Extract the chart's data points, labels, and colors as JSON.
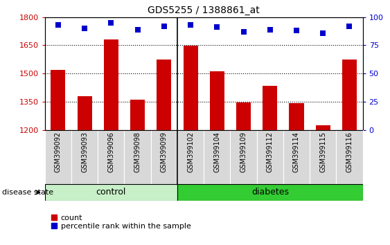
{
  "title": "GDS5255 / 1388861_at",
  "categories": [
    "GSM399092",
    "GSM399093",
    "GSM399096",
    "GSM399098",
    "GSM399099",
    "GSM399102",
    "GSM399104",
    "GSM399109",
    "GSM399112",
    "GSM399114",
    "GSM399115",
    "GSM399116"
  ],
  "bar_values": [
    1520,
    1380,
    1680,
    1360,
    1575,
    1648,
    1510,
    1345,
    1435,
    1343,
    1225,
    1575
  ],
  "percentile_values": [
    93,
    90,
    95,
    89,
    92,
    93,
    91,
    87,
    89,
    88,
    86,
    92
  ],
  "bar_color": "#cc0000",
  "percentile_color": "#0000cc",
  "ylim_left": [
    1200,
    1800
  ],
  "ylim_right": [
    0,
    100
  ],
  "yticks_left": [
    1200,
    1350,
    1500,
    1650,
    1800
  ],
  "yticks_right": [
    0,
    25,
    50,
    75,
    100
  ],
  "control_count": 5,
  "diabetes_count": 7,
  "control_color": "#c8f0c8",
  "diabetes_color": "#33cc33",
  "group_label": "disease state",
  "plot_bg_color": "#ffffff",
  "xtick_bg_color": "#d8d8d8",
  "legend_count_label": "count",
  "legend_pct_label": "percentile rank within the sample"
}
